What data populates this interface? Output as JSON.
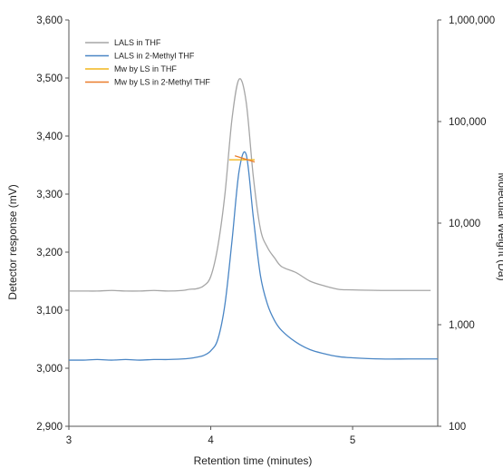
{
  "chart_data": {
    "type": "line",
    "title": "",
    "xlabel": "Retention time (minutes)",
    "ylabel": "Detector response (mV)",
    "y2label": "Molecular Weight (Da)",
    "xlim": [
      3,
      5.6
    ],
    "ylim": [
      2900,
      3600
    ],
    "y2lim": [
      100,
      1000000
    ],
    "y2scale": "log",
    "xticks": [
      3,
      4,
      5
    ],
    "xtick_labels": [
      "3",
      "4",
      "5"
    ],
    "yticks": [
      2900,
      3000,
      3100,
      3200,
      3300,
      3400,
      3500,
      3600
    ],
    "ytick_labels": [
      "2,900",
      "3,000",
      "3,100",
      "3,200",
      "3,300",
      "3,400",
      "3,500",
      "3,600"
    ],
    "y2ticks": [
      100,
      1000,
      10000,
      100000,
      1000000
    ],
    "y2tick_labels": [
      "100",
      "1,000",
      "10,000",
      "100,000",
      "1,000,000"
    ],
    "grid": false,
    "legend_position": "top-left",
    "series": [
      {
        "name": "LALS in THF",
        "axis": "left",
        "color": "#a6a6a6",
        "x": [
          3.0,
          3.1,
          3.2,
          3.3,
          3.4,
          3.5,
          3.6,
          3.7,
          3.8,
          3.85,
          3.9,
          3.95,
          4.0,
          4.05,
          4.1,
          4.15,
          4.2,
          4.25,
          4.3,
          4.35,
          4.4,
          4.45,
          4.5,
          4.6,
          4.7,
          4.8,
          4.9,
          5.0,
          5.2,
          5.4,
          5.55
        ],
        "y": [
          3133,
          3133,
          3133,
          3134,
          3133,
          3133,
          3134,
          3133,
          3134,
          3136,
          3137,
          3142,
          3158,
          3210,
          3300,
          3430,
          3498,
          3458,
          3330,
          3240,
          3208,
          3190,
          3175,
          3165,
          3150,
          3142,
          3136,
          3135,
          3134,
          3134,
          3134
        ]
      },
      {
        "name": "LALS in 2-Methyl THF",
        "axis": "left",
        "color": "#4a86c5",
        "x": [
          3.0,
          3.1,
          3.2,
          3.3,
          3.4,
          3.5,
          3.6,
          3.7,
          3.8,
          3.85,
          3.9,
          3.95,
          4.0,
          4.05,
          4.1,
          4.15,
          4.2,
          4.25,
          4.3,
          4.35,
          4.4,
          4.45,
          4.5,
          4.6,
          4.7,
          4.8,
          4.9,
          5.0,
          5.2,
          5.4,
          5.6
        ],
        "y": [
          3014,
          3014,
          3015,
          3014,
          3015,
          3014,
          3015,
          3015,
          3016,
          3017,
          3019,
          3022,
          3030,
          3050,
          3110,
          3220,
          3340,
          3368,
          3260,
          3160,
          3110,
          3082,
          3065,
          3045,
          3032,
          3025,
          3020,
          3018,
          3016,
          3016,
          3016
        ]
      },
      {
        "name": "Mw by LS in THF",
        "axis": "right",
        "color": "#f2b61d",
        "x": [
          4.13,
          4.31
        ],
        "y": [
          42000,
          42000
        ]
      },
      {
        "name": "Mw by LS in 2-Methyl THF",
        "axis": "right",
        "color": "#ea7d2c",
        "x": [
          4.17,
          4.31
        ],
        "y": [
          46000,
          40000
        ]
      }
    ]
  }
}
